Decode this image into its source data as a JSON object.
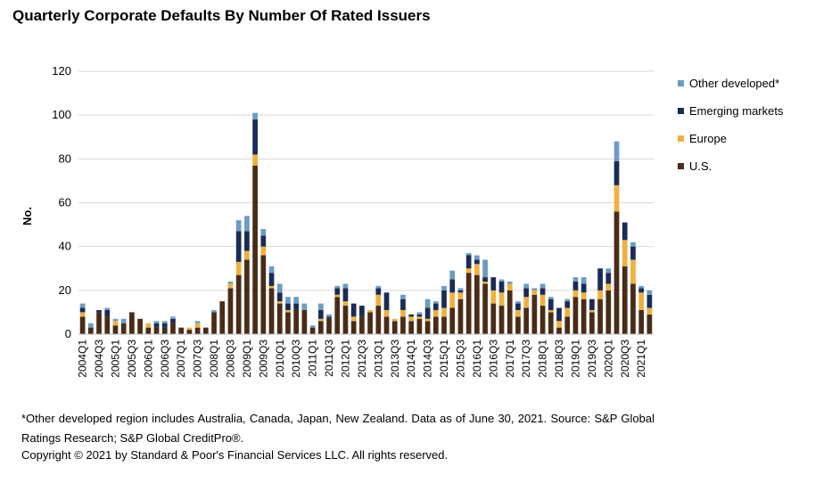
{
  "title": "Quarterly Corporate Defaults By Number Of Rated Issuers",
  "footnote": "*Other developed region includes Australia, Canada, Japan, New Zealand. Data as of June 30, 2021. Source: S&P Global Ratings Research; S&P Global CreditPro®.",
  "copyright": "Copyright © 2021 by Standard & Poor's Financial Services LLC. All rights reserved.",
  "chart_data": {
    "type": "bar",
    "stacked": true,
    "ylabel": "No.",
    "xlabel": "",
    "ylim": [
      0,
      120
    ],
    "yticks": [
      0,
      20,
      40,
      60,
      80,
      100,
      120
    ],
    "grid": true,
    "legend_position": "right",
    "categories": [
      "2004Q1",
      "2004Q2",
      "2004Q3",
      "2004Q4",
      "2005Q1",
      "2005Q2",
      "2005Q3",
      "2005Q4",
      "2006Q1",
      "2006Q2",
      "2006Q3",
      "2006Q4",
      "2007Q1",
      "2007Q2",
      "2007Q3",
      "2007Q4",
      "2008Q1",
      "2008Q2",
      "2008Q3",
      "2008Q4",
      "2009Q1",
      "2009Q2",
      "2009Q3",
      "2009Q4",
      "2010Q1",
      "2010Q2",
      "2010Q3",
      "2010Q4",
      "2011Q1",
      "2011Q2",
      "2011Q3",
      "2011Q4",
      "2012Q1",
      "2012Q2",
      "2012Q3",
      "2012Q4",
      "2013Q1",
      "2013Q2",
      "2013Q3",
      "2013Q4",
      "2014Q1",
      "2014Q2",
      "2014Q3",
      "2014Q4",
      "2015Q1",
      "2015Q2",
      "2015Q3",
      "2015Q4",
      "2016Q1",
      "2016Q2",
      "2016Q3",
      "2016Q4",
      "2017Q1",
      "2017Q2",
      "2017Q3",
      "2017Q4",
      "2018Q1",
      "2018Q2",
      "2018Q3",
      "2018Q4",
      "2019Q1",
      "2019Q2",
      "2019Q3",
      "2019Q4",
      "2020Q1",
      "2020Q2",
      "2020Q3",
      "2020Q4",
      "2021Q1",
      "2021Q2"
    ],
    "tick_labels": [
      "2004Q1",
      "2004Q3",
      "2005Q1",
      "2005Q3",
      "2006Q1",
      "2006Q3",
      "2007Q1",
      "2007Q3",
      "2008Q1",
      "2008Q3",
      "2009Q1",
      "2009Q3",
      "2010Q1",
      "2010Q3",
      "2011Q1",
      "2011Q3",
      "2012Q1",
      "2012Q3",
      "2013Q1",
      "2013Q3",
      "2014Q1",
      "2014Q3",
      "2015Q1",
      "2015Q3",
      "2016Q1",
      "2016Q3",
      "2017Q1",
      "2017Q3",
      "2018Q1",
      "2018Q3",
      "2019Q1",
      "2019Q3",
      "2020Q1",
      "2020Q3",
      "2021Q1"
    ],
    "series": [
      {
        "name": "U.S.",
        "color": "#4a2b17",
        "values": [
          8,
          3,
          10,
          8,
          4,
          5,
          10,
          7,
          3,
          3,
          3,
          5,
          3,
          2,
          3,
          3,
          10,
          15,
          21,
          27,
          34,
          77,
          36,
          21,
          14,
          10,
          11,
          11,
          3,
          6,
          7,
          17,
          13,
          6,
          8,
          10,
          13,
          8,
          6,
          8,
          6,
          7,
          6,
          8,
          8,
          12,
          16,
          28,
          27,
          23,
          14,
          13,
          20,
          8,
          12,
          18,
          13,
          10,
          3,
          8,
          17,
          16,
          10,
          16,
          20,
          56,
          31,
          23,
          11,
          9
        ]
      },
      {
        "name": "Europe",
        "color": "#f0b040",
        "values": [
          2,
          0,
          0,
          0,
          2,
          0,
          0,
          0,
          2,
          0,
          0,
          0,
          0,
          1,
          2,
          0,
          0,
          0,
          2,
          6,
          4,
          5,
          4,
          1,
          1,
          1,
          0,
          0,
          0,
          1,
          0,
          1,
          2,
          2,
          0,
          1,
          5,
          3,
          1,
          3,
          2,
          1,
          1,
          3,
          4,
          7,
          3,
          2,
          5,
          1,
          6,
          6,
          3,
          3,
          5,
          2,
          5,
          1,
          3,
          4,
          3,
          3,
          1,
          4,
          3,
          12,
          12,
          11,
          8,
          3
        ]
      },
      {
        "name": "Emerging markets",
        "color": "#1a2c55",
        "values": [
          2,
          0,
          1,
          3,
          0,
          0,
          0,
          0,
          0,
          2,
          2,
          2,
          0,
          0,
          0,
          0,
          0,
          0,
          0,
          14,
          9,
          16,
          5,
          6,
          4,
          3,
          3,
          0,
          0,
          4,
          1,
          3,
          6,
          6,
          5,
          0,
          3,
          8,
          0,
          5,
          1,
          1,
          5,
          3,
          8,
          6,
          1,
          6,
          2,
          2,
          6,
          5,
          0,
          3,
          4,
          0,
          3,
          5,
          6,
          3,
          4,
          4,
          5,
          10,
          5,
          11,
          8,
          6,
          2,
          6
        ]
      },
      {
        "name": "Other developed*",
        "color": "#6b9cc4",
        "values": [
          2,
          2,
          0,
          1,
          1,
          2,
          0,
          0,
          0,
          1,
          1,
          1,
          0,
          0,
          1,
          0,
          1,
          0,
          1,
          5,
          7,
          3,
          3,
          3,
          4,
          3,
          3,
          3,
          1,
          3,
          1,
          1,
          2,
          0,
          0,
          0,
          1,
          0,
          0,
          2,
          0,
          1,
          4,
          1,
          2,
          4,
          1,
          1,
          2,
          8,
          0,
          1,
          1,
          1,
          2,
          1,
          2,
          1,
          0,
          1,
          2,
          3,
          0,
          0,
          2,
          9,
          0,
          2,
          1,
          2
        ]
      }
    ]
  }
}
